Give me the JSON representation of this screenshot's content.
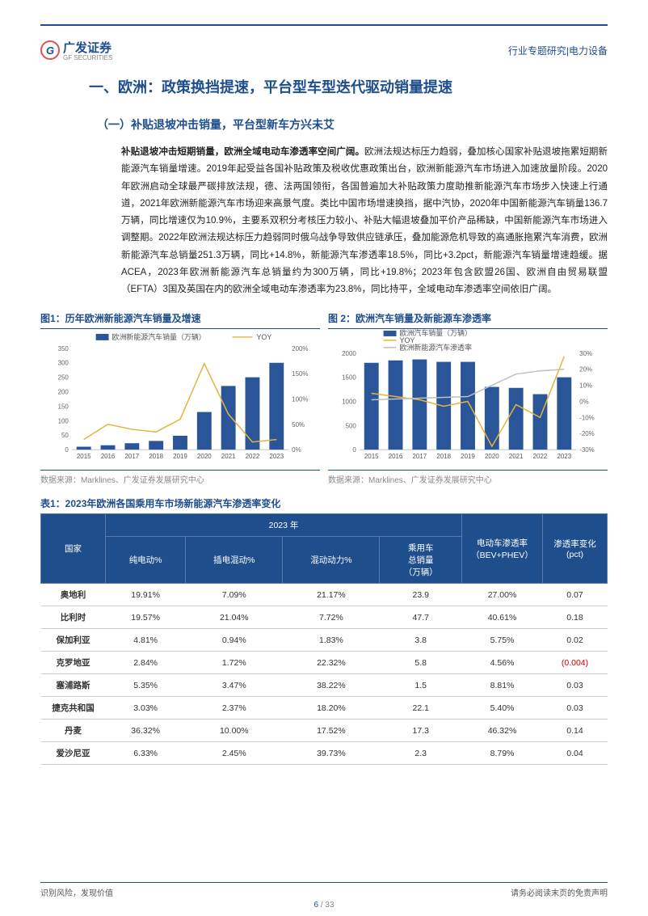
{
  "header": {
    "logo_main": "广发证券",
    "logo_sub": "GF SECURITIES",
    "logo_letter": "G",
    "right": "行业专题研究|电力设备"
  },
  "h1": "一、欧洲：政策换挡提速，平台型车型迭代驱动销量提速",
  "h2": "（一）补贴退坡冲击销量，平台型新车方兴未艾",
  "bold_lead": "补贴退坡冲击短期销量，欧洲全域电动车渗透率空间广阔。",
  "body": "欧洲法规达标压力趋弱，叠加核心国家补贴退坡拖累短期新能源汽车销量增速。2019年起受益各国补贴政策及税收优惠政策出台，欧洲新能源汽车市场进入加速放量阶段。2020年欧洲启动全球最严碳排放法规，德、法两国领衔，各国普遍加大补贴政策力度助推新能源汽车市场步入快速上行通道，2021年欧洲新能源汽车市场迎来高景气度。类比中国市场增速换挡，据中汽协，2020年中国新能源汽车销量136.7万辆，同比增速仅为10.9%，主要系双积分考核压力较小、补贴大幅退坡叠加平价产品稀缺，中国新能源汽车市场进入调整期。2022年欧洲法规达标压力趋弱同时俄乌战争导致供应链承压，叠加能源危机导致的高通胀拖累汽车消费，欧洲新能源汽车总销量251.3万辆，同比+14.8%，新能源汽车渗透率18.5%，同比+3.2pct，新能源汽车销量增速趋缓。据ACEA，2023年欧洲新能源汽车总销量约为300万辆，同比+19.8%；2023年包含欧盟26国、欧洲自由贸易联盟（EFTA）3国及英国在内的欧洲全域电动车渗透率为23.8%，同比持平，全域电动车渗透率空间依旧广阔。",
  "chart1": {
    "title": "图1：历年欧洲新能源汽车销量及增速",
    "source": "数据来源：Marklines、广发证券发展研究中心",
    "legend_bar": "欧洲新能源汽车销量（万辆）",
    "legend_line": "YOY",
    "years": [
      "2015",
      "2016",
      "2017",
      "2018",
      "2019",
      "2020",
      "2021",
      "2022",
      "2023"
    ],
    "bars": [
      10,
      15,
      22,
      30,
      48,
      130,
      220,
      250,
      300
    ],
    "line": [
      20,
      50,
      40,
      35,
      60,
      170,
      70,
      15,
      20
    ],
    "y_left_max": 350,
    "y_left_step": 50,
    "y_right_min": 0,
    "y_right_max": 200,
    "y_right_step": 50,
    "bar_color": "#2a5599",
    "line_color": "#e6b33c",
    "bg": "#ffffff"
  },
  "chart2": {
    "title": "图 2：欧洲汽车销量及新能源车渗透率",
    "source": "数据来源：Marklines、广发证券发展研究中心",
    "legend_bar": "欧洲汽车销量（万辆）",
    "legend_line1": "YOY",
    "legend_line2": "欧洲新能源汽车渗透率",
    "years": [
      "2015",
      "2016",
      "2017",
      "2018",
      "2019",
      "2020",
      "2021",
      "2022",
      "2023"
    ],
    "bars": [
      1800,
      1850,
      1870,
      1820,
      1820,
      1300,
      1280,
      1150,
      1500
    ],
    "line_yoy": [
      5,
      3,
      1,
      -3,
      0,
      -28,
      -2,
      -10,
      28
    ],
    "line_pen": [
      1,
      1.5,
      2,
      2.5,
      3,
      10,
      17,
      19,
      20
    ],
    "y_left_max": 2000,
    "y_left_step": 500,
    "y_right_min": -30,
    "y_right_max": 30,
    "y_right_step": 10,
    "bar_color": "#2a5599",
    "line1_color": "#e6b33c",
    "line2_color": "#bfbfbf",
    "bg": "#ffffff"
  },
  "table": {
    "title": "表1：2023年欧洲各国乘用车市场新能源汽车渗透率变化",
    "header_group": "2023 年",
    "cols": [
      "国家",
      "纯电动%",
      "插电混动%",
      "混动动力%",
      "乘用车\n总销量\n（万辆）",
      "电动车渗透率\n（BEV+PHEV）",
      "渗透率变化\n(pct)"
    ],
    "rows": [
      {
        "c": "奥地利",
        "v": [
          "19.91%",
          "7.09%",
          "21.17%",
          "23.9",
          "27.00%",
          "0.07"
        ]
      },
      {
        "c": "比利时",
        "v": [
          "19.57%",
          "21.04%",
          "7.72%",
          "47.7",
          "40.61%",
          "0.18"
        ]
      },
      {
        "c": "保加利亚",
        "v": [
          "4.81%",
          "0.94%",
          "1.83%",
          "3.8",
          "5.75%",
          "0.02"
        ]
      },
      {
        "c": "克罗地亚",
        "v": [
          "2.84%",
          "1.72%",
          "22.32%",
          "5.8",
          "4.56%",
          "(0.004)"
        ],
        "neg": true
      },
      {
        "c": "塞浦路斯",
        "v": [
          "5.35%",
          "3.47%",
          "38.22%",
          "1.5",
          "8.81%",
          "0.03"
        ]
      },
      {
        "c": "捷克共和国",
        "v": [
          "3.03%",
          "2.37%",
          "18.20%",
          "22.1",
          "5.40%",
          "0.03"
        ]
      },
      {
        "c": "丹麦",
        "v": [
          "36.32%",
          "10.00%",
          "17.52%",
          "17.3",
          "46.32%",
          "0.14"
        ]
      },
      {
        "c": "爱沙尼亚",
        "v": [
          "6.33%",
          "2.45%",
          "39.73%",
          "2.3",
          "8.79%",
          "0.04"
        ]
      }
    ]
  },
  "footer": {
    "left": "识别风险，发现价值",
    "right": "请务必阅读末页的免责声明",
    "page": "6",
    "total": " / 33"
  }
}
